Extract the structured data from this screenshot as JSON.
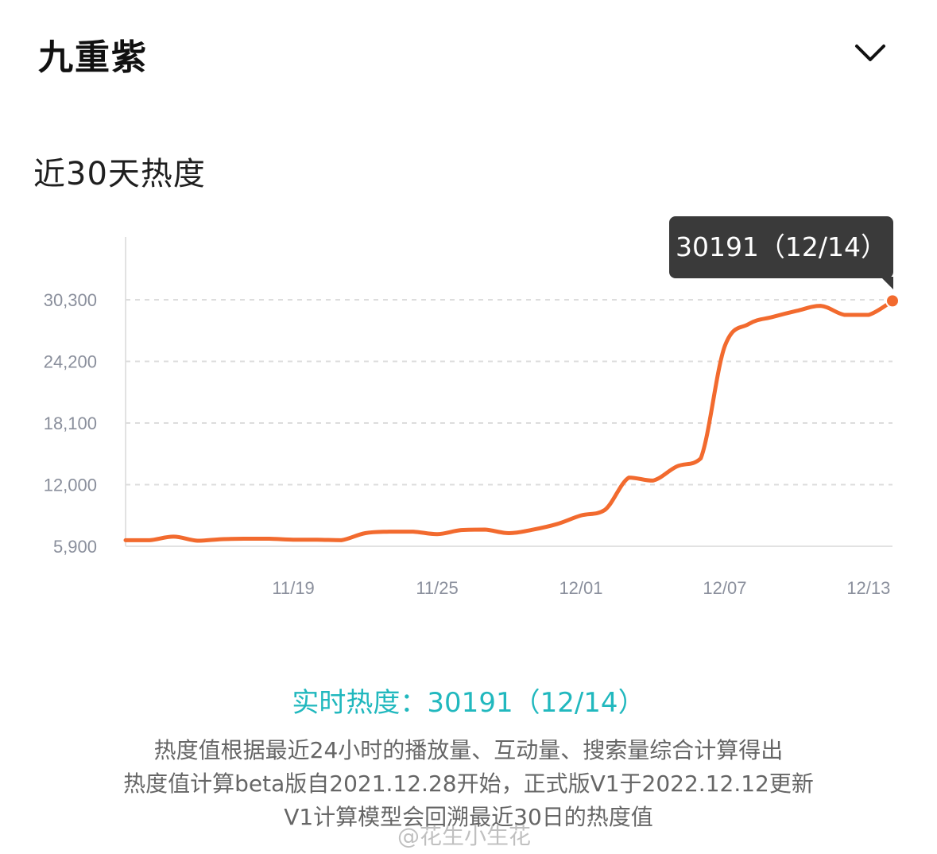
{
  "header": {
    "title": "九重紫"
  },
  "section": {
    "title": "近30天热度"
  },
  "tooltip": {
    "text": "30191（12/14）"
  },
  "colors": {
    "line": "#f26a2e",
    "grid": "#dddddd",
    "axis": "#e2e2e2",
    "tick_text": "#8a8f9c",
    "accent": "#21b8be",
    "tooltip_bg": "#3a3a3a"
  },
  "chart_data": {
    "type": "line",
    "x_tick_labels": [
      "11/19",
      "11/25",
      "12/01",
      "12/07",
      "12/13"
    ],
    "y_tick_labels": [
      "30,300",
      "24,200",
      "18,100",
      "12,000",
      "5,900"
    ],
    "ylim": [
      5900,
      30300
    ],
    "grid": true,
    "series": [
      {
        "x": [
          "11/12",
          "11/13",
          "11/14",
          "11/15",
          "11/16",
          "11/17",
          "11/18",
          "11/19",
          "11/20",
          "11/21",
          "11/22",
          "11/23",
          "11/24",
          "11/25",
          "11/26",
          "11/27",
          "11/28",
          "11/29",
          "11/30",
          "12/01",
          "12/02",
          "12/03",
          "12/04",
          "12/05",
          "12/06",
          "12/07",
          "12/08",
          "12/09",
          "12/10",
          "12/11",
          "12/12",
          "12/13",
          "12/14"
        ],
        "values": [
          6500,
          6500,
          6850,
          6450,
          6600,
          6650,
          6650,
          6550,
          6550,
          6500,
          7200,
          7350,
          7350,
          7100,
          7500,
          7550,
          7200,
          7550,
          8100,
          8950,
          9500,
          12700,
          12400,
          13800,
          14600,
          25700,
          27900,
          28600,
          29200,
          29700,
          28800,
          28800,
          30191
        ]
      }
    ],
    "highlight": {
      "x": "12/14",
      "value": 30191
    }
  },
  "footer": {
    "realtime": "实时热度：30191（12/14）",
    "line1": "热度值根据最近24小时的播放量、互动量、搜索量综合计算得出",
    "line2": "热度值计算beta版自2021.12.28开始，正式版V1于2022.12.12更新",
    "line3": "V1计算模型会回溯最近30日的热度值"
  },
  "watermark": {
    "text": "@花生小生花"
  }
}
